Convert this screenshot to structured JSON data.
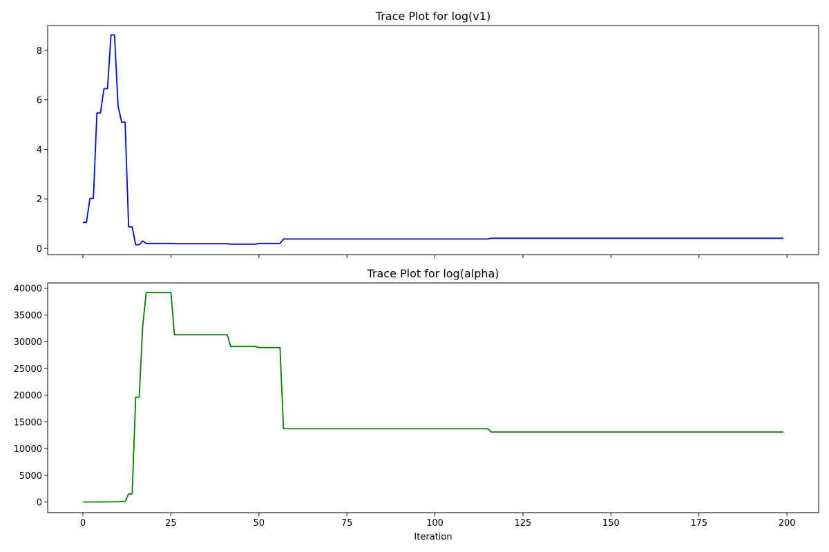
{
  "chart_data": [
    {
      "type": "line",
      "title": "Trace Plot for log(v1)",
      "xlabel": "",
      "ylabel": "",
      "xlim": [
        -10,
        209
      ],
      "ylim": [
        -0.25,
        9.0
      ],
      "xticks": [
        0,
        25,
        50,
        75,
        100,
        125,
        150,
        175,
        200
      ],
      "xtick_labels_shown": false,
      "yticks": [
        0,
        2,
        4,
        6,
        8
      ],
      "ytick_labels": [
        "0",
        "2",
        "4",
        "6",
        "8"
      ],
      "grid": false,
      "series": [
        {
          "color": "#0000ff",
          "points": [
            [
              0,
              1.05
            ],
            [
              1,
              1.05
            ],
            [
              2,
              2.02
            ],
            [
              3,
              2.02
            ],
            [
              4,
              5.47
            ],
            [
              5,
              5.47
            ],
            [
              6,
              6.45
            ],
            [
              7,
              6.45
            ],
            [
              8,
              8.62
            ],
            [
              9,
              8.62
            ],
            [
              10,
              5.75
            ],
            [
              11,
              5.1
            ],
            [
              12,
              5.1
            ],
            [
              13,
              0.87
            ],
            [
              14,
              0.87
            ],
            [
              15,
              0.15
            ],
            [
              16,
              0.15
            ],
            [
              17,
              0.3
            ],
            [
              18,
              0.2
            ],
            [
              25,
              0.2
            ],
            [
              26,
              0.19
            ],
            [
              41,
              0.19
            ],
            [
              42,
              0.17
            ],
            [
              49,
              0.17
            ],
            [
              50,
              0.2
            ],
            [
              56,
              0.2
            ],
            [
              57,
              0.38
            ],
            [
              115,
              0.38
            ],
            [
              116,
              0.41
            ],
            [
              199,
              0.41
            ]
          ]
        }
      ]
    },
    {
      "type": "line",
      "title": "Trace Plot for log(alpha)",
      "xlabel": "Iteration",
      "ylabel": "",
      "xlim": [
        -10,
        209
      ],
      "ylim": [
        -2000,
        41000
      ],
      "xticks": [
        0,
        25,
        50,
        75,
        100,
        125,
        150,
        175,
        200
      ],
      "xtick_labels": [
        "0",
        "25",
        "50",
        "75",
        "100",
        "125",
        "150",
        "175",
        "200"
      ],
      "yticks": [
        0,
        5000,
        10000,
        15000,
        20000,
        25000,
        30000,
        35000,
        40000
      ],
      "ytick_labels": [
        "0",
        "5000",
        "10000",
        "15000",
        "20000",
        "25000",
        "30000",
        "35000",
        "40000"
      ],
      "grid": false,
      "series": [
        {
          "color": "#008000",
          "points": [
            [
              0,
              0
            ],
            [
              5,
              0
            ],
            [
              10,
              50
            ],
            [
              12,
              100
            ],
            [
              13,
              1500
            ],
            [
              14,
              1500
            ],
            [
              15,
              19600
            ],
            [
              16,
              19600
            ],
            [
              17,
              33000
            ],
            [
              18,
              39200
            ],
            [
              25,
              39200
            ],
            [
              26,
              31300
            ],
            [
              41,
              31300
            ],
            [
              42,
              29100
            ],
            [
              49,
              29100
            ],
            [
              50,
              28900
            ],
            [
              56,
              28900
            ],
            [
              57,
              13700
            ],
            [
              115,
              13700
            ],
            [
              116,
              13100
            ],
            [
              199,
              13100
            ]
          ]
        }
      ]
    }
  ]
}
